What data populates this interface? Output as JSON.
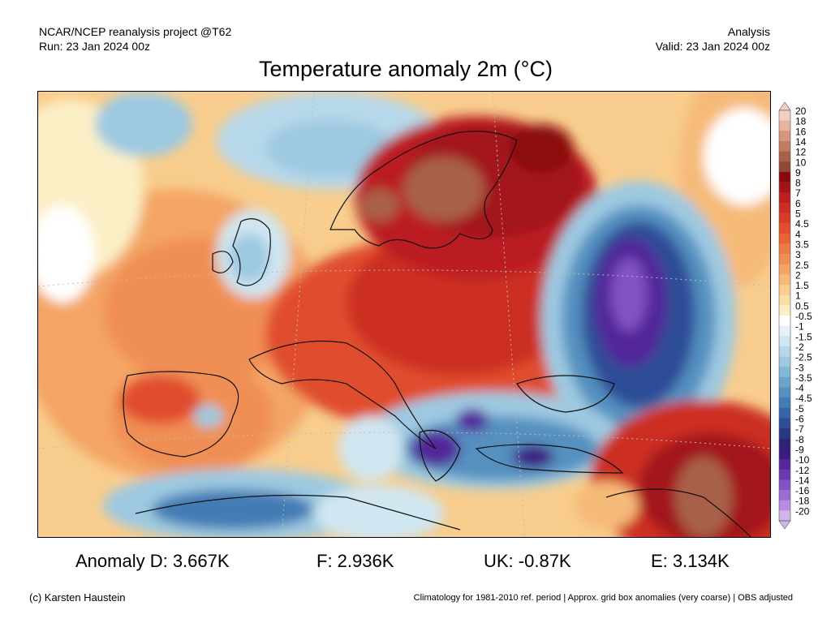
{
  "header": {
    "left_line1": "NCAR/NCEP reanalysis project @T62",
    "left_line2": "Run: 23 Jan 2024 00z",
    "right_line1": "Analysis",
    "right_line2": "Valid: 23 Jan 2024 00z"
  },
  "title": "Temperature anomaly 2m (°C)",
  "colorbar": {
    "labels": [
      "20",
      "18",
      "16",
      "14",
      "12",
      "10",
      "9",
      "8",
      "7",
      "6",
      "5",
      "4.5",
      "4",
      "3.5",
      "3",
      "2.5",
      "2",
      "1.5",
      "1",
      "0.5",
      "-0.5",
      "-1",
      "-1.5",
      "-2",
      "-2.5",
      "-3",
      "-3.5",
      "-4",
      "-4.5",
      "-5",
      "-6",
      "-7",
      "-8",
      "-9",
      "-10",
      "-12",
      "-14",
      "-16",
      "-18",
      "-20"
    ],
    "colors": [
      "#f2d0c4",
      "#e5b39f",
      "#d4977d",
      "#c07b61",
      "#a8604a",
      "#8e4a36",
      "#8b0a0f",
      "#a3141a",
      "#bb1f23",
      "#cc2d24",
      "#d83d28",
      "#e04e2d",
      "#e76436",
      "#ec7a44",
      "#f08f54",
      "#f4a565",
      "#f6ba78",
      "#f8cd8d",
      "#f9dfa4",
      "#fbefc6",
      "#ffffff",
      "#e7f1f7",
      "#d0e6f0",
      "#b7d8ea",
      "#9dc9e1",
      "#83b8d7",
      "#6aa4cb",
      "#5590c0",
      "#437bb4",
      "#3565a8",
      "#2d4d97",
      "#2a3785",
      "#2f2277",
      "#3d1c82",
      "#53289a",
      "#6a3bb0",
      "#8252c3",
      "#9a6dd2",
      "#b58ee0",
      "#d1b6ec"
    ]
  },
  "stats": {
    "d": "Anomaly D: 3.667K",
    "f": "F: 2.936K",
    "uk": "UK: -0.87K",
    "e": "E: 3.134K"
  },
  "footer": {
    "credit": "(c) Karsten Haustein",
    "climatology": "Climatology for 1981-2010 ref. period | Approx. grid box anomalies (very coarse) | OBS adjusted"
  }
}
